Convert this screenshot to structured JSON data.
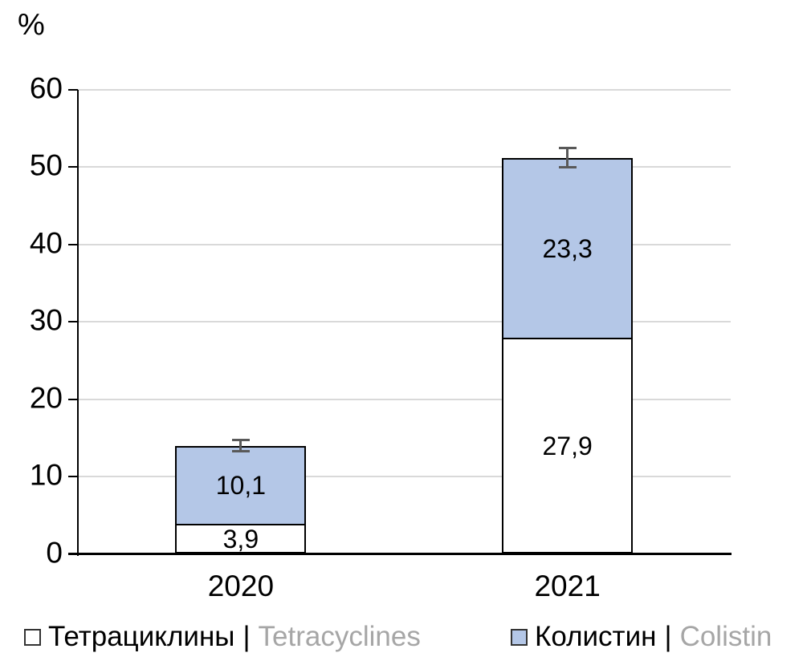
{
  "chart": {
    "percent_label": "%",
    "colors": {
      "bar_fill_tetracyclines": "#ffffff",
      "bar_fill_colistin": "#b4c7e7",
      "bar_border": "#000000",
      "gridline": "#d9d9d9",
      "axis": "#000000",
      "error_bar": "#595959",
      "legend_en_text": "#a6a6a6",
      "background": "#ffffff"
    }
  },
  "chart_data": {
    "type": "bar",
    "stacked": true,
    "title": "",
    "ylabel": "%",
    "xlabel": "",
    "ylim": [
      0,
      60
    ],
    "yticks": [
      0,
      10,
      20,
      30,
      40,
      50,
      60
    ],
    "grid": true,
    "legend_position": "bottom",
    "categories": [
      "2020",
      "2021"
    ],
    "series": [
      {
        "name_ru": "Тетрациклины",
        "name_en": "Tetracyclines",
        "color": "#ffffff",
        "values": [
          3.9,
          27.9
        ],
        "labels": [
          "3,9",
          "27,9"
        ]
      },
      {
        "name_ru": "Колистин",
        "name_en": "Colistin",
        "color": "#b4c7e7",
        "values": [
          10.1,
          23.3
        ],
        "labels": [
          "10,1",
          "23,3"
        ]
      }
    ],
    "totals": [
      14.0,
      51.2
    ],
    "error_bars": [
      {
        "category": "2020",
        "top": 14.0,
        "plus": 0.8,
        "minus": 0.8
      },
      {
        "category": "2021",
        "top": 51.2,
        "plus": 1.3,
        "minus": 1.3
      }
    ]
  },
  "legend": {
    "items": [
      {
        "ru": "Тетрациклины",
        "sep": "|",
        "en": "Tetracyclines",
        "swatch": "#ffffff"
      },
      {
        "ru": "Колистин",
        "sep": "|",
        "en": "Colistin",
        "swatch": "#b4c7e7"
      }
    ]
  }
}
